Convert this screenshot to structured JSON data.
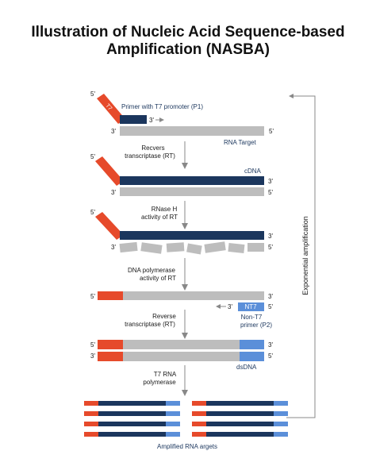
{
  "title": {
    "line1": "Illustration of Nucleic Acid Sequence-based",
    "line2": "Amplification (NASBA)"
  },
  "colors": {
    "navy": "#1b365d",
    "grey": "#bdbdbd",
    "red": "#e64a2b",
    "blue": "#5b8fd9",
    "arrow": "#888888"
  },
  "labels": {
    "primer_t7": "Primer with T7 promoter (P1)",
    "t7_tag": "T7",
    "rna_target": "RNA Target",
    "step_rt": "Recvers transcriptase (RT)",
    "step_rt_line1": "Recvers",
    "step_rt_line2": "transcriptase (RT)",
    "cdna": "cDNA",
    "step_rnase_line1": "RNase H",
    "step_rnase_line2": "activity of RT",
    "step_dnapol_line1": "DNA polymerase",
    "step_dnapol_line2": "activity of RT",
    "nt7_tag": "NT7",
    "nont7_line1": "Non-T7",
    "nont7_line2": "primer (P2)",
    "step_rev_line1": "Reverse",
    "step_rev_line2": "transcriptase (RT)",
    "dsdna": "dsDNA",
    "step_t7rna_line1": "T7 RNA",
    "step_t7rna_line2": "polymerase",
    "amplified": "Amplified RNA argets",
    "exponential": "Exponential amplification",
    "five_prime": "5'",
    "three_prime": "3'"
  }
}
